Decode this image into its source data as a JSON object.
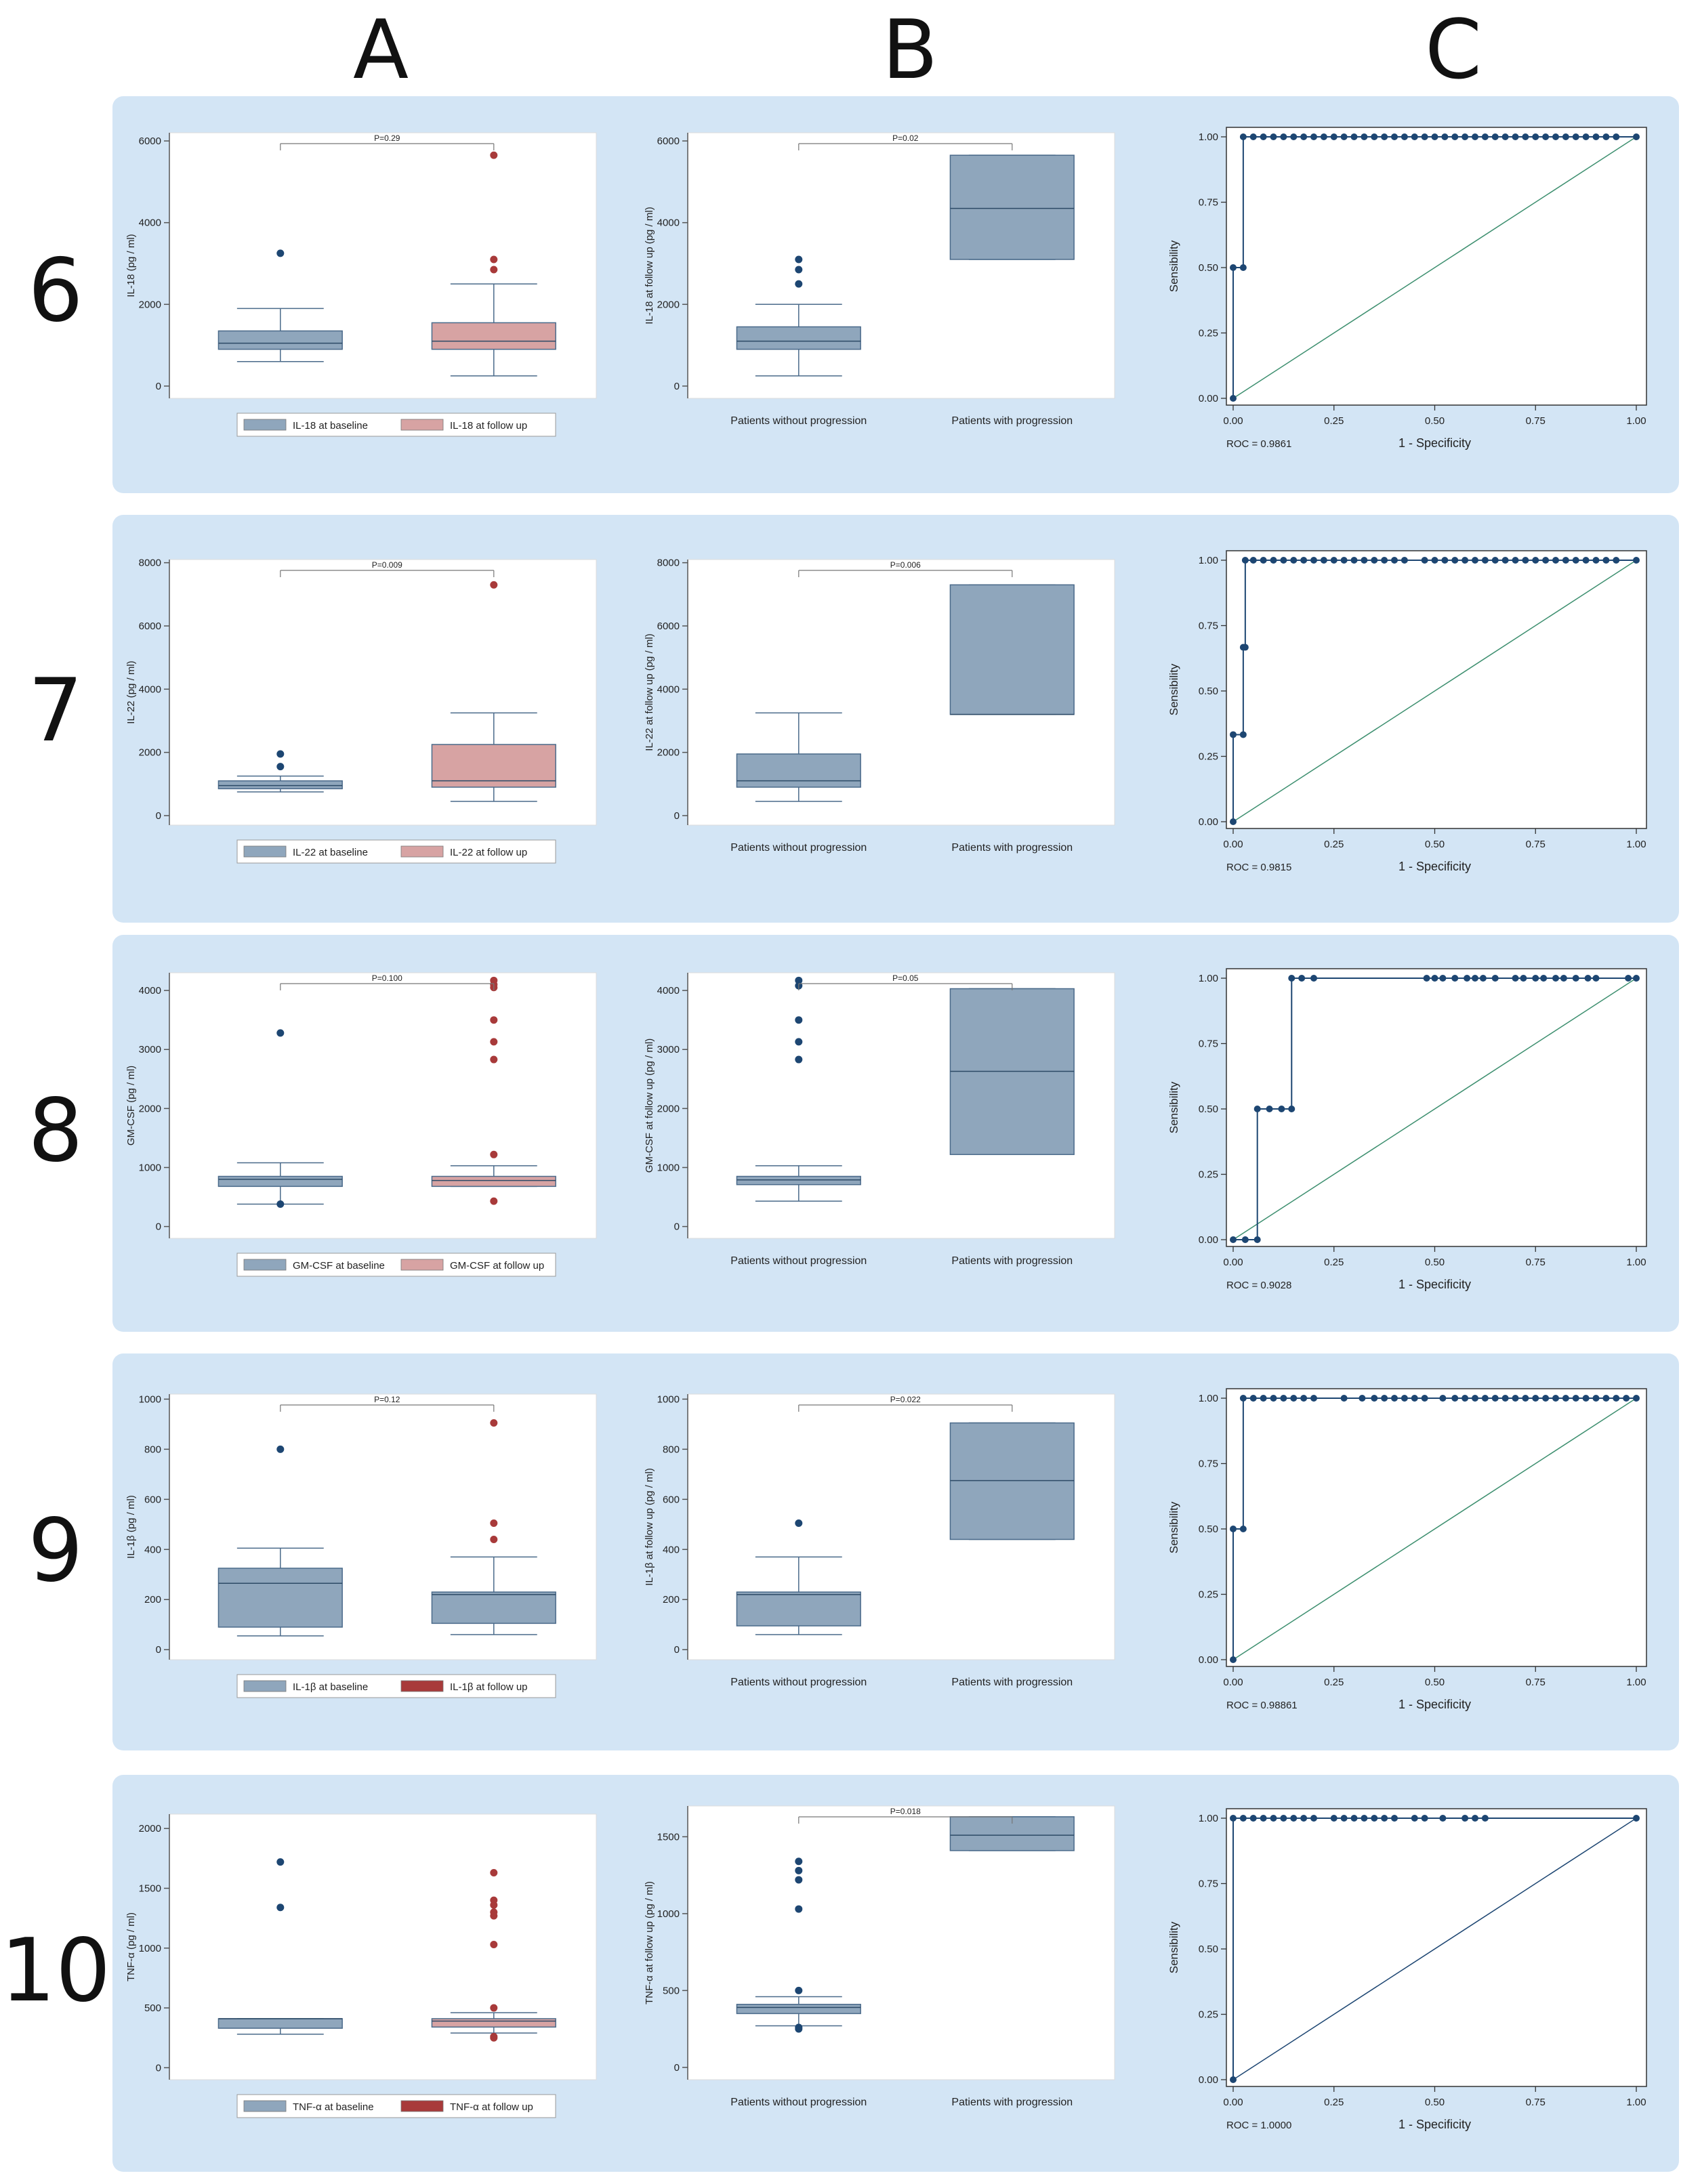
{
  "column_letters": [
    "A",
    "B",
    "C"
  ],
  "colors": {
    "baseline": "#8fa6bc",
    "follow_up_light": "#d7a3a3",
    "follow_up_dark": "#a83a3a",
    "outlier_blue": "#1d4672",
    "outlier_red": "#a83a3a",
    "roc_line": "#1d4672",
    "diagonal_green": "#3d8f6f",
    "panel_bg": "#d3e5f5"
  },
  "rows": [
    {
      "number": "6",
      "A": {
        "type": "box",
        "ylabel": "IL-18  (pg / ml)",
        "yticks": [
          0,
          2000,
          4000,
          6000
        ],
        "ylim": [
          -300,
          6200
        ],
        "pvalue": "P=0.29",
        "legend": [
          {
            "label": "IL-18 at baseline",
            "color": "#8fa6bc"
          },
          {
            "label": "IL-18 at follow up",
            "color": "#d7a3a3"
          }
        ],
        "boxes": [
          {
            "name": "IL-18 at baseline",
            "whislo": 600,
            "q1": 900,
            "med": 1050,
            "q3": 1350,
            "whishi": 1900,
            "outliers": [
              3250
            ],
            "color": "#8fa6bc",
            "out": "#1d4672"
          },
          {
            "name": "IL-18 at follow up",
            "whislo": 250,
            "q1": 900,
            "med": 1100,
            "q3": 1550,
            "whishi": 2500,
            "outliers": [
              2850,
              3100,
              5650
            ],
            "color": "#d7a3a3",
            "out": "#a83a3a"
          }
        ]
      },
      "B": {
        "type": "box",
        "ylabel": "IL-18 at follow up (pg / ml)",
        "yticks": [
          0,
          2000,
          4000,
          6000
        ],
        "ylim": [
          -300,
          6200
        ],
        "pvalue": "P=0.02",
        "categories": [
          "Patients without progression",
          "Patients with progression"
        ],
        "boxes": [
          {
            "name": "Patients without progression",
            "whislo": 250,
            "q1": 900,
            "med": 1100,
            "q3": 1450,
            "whishi": 2000,
            "outliers": [
              2500,
              2850,
              3100
            ],
            "color": "#8fa6bc",
            "out": "#1d4672"
          },
          {
            "name": "Patients with progression",
            "whislo": 3100,
            "q1": 3100,
            "med": 4350,
            "q3": 5650,
            "whishi": 5650,
            "outliers": [],
            "color": "#8fa6bc",
            "out": "#1d4672"
          }
        ]
      },
      "C": {
        "type": "roc",
        "ylabel": "Sensibility",
        "xlabel": "1 - Specificity",
        "roc_label": "ROC = 0.9861",
        "ticks": [
          "0.00",
          "0.25",
          "0.50",
          "0.75",
          "1.00"
        ],
        "x": [
          0,
          0,
          0.025,
          0.025,
          0.05,
          0.075,
          0.1,
          0.125,
          0.15,
          0.175,
          0.2,
          0.225,
          0.25,
          0.275,
          0.3,
          0.325,
          0.35,
          0.375,
          0.4,
          0.425,
          0.45,
          0.475,
          0.5,
          0.525,
          0.55,
          0.575,
          0.6,
          0.625,
          0.65,
          0.675,
          0.7,
          0.725,
          0.75,
          0.775,
          0.8,
          0.825,
          0.85,
          0.875,
          0.9,
          0.925,
          0.95,
          1.0
        ],
        "y": [
          0,
          0.5,
          0.5,
          1,
          1,
          1,
          1,
          1,
          1,
          1,
          1,
          1,
          1,
          1,
          1,
          1,
          1,
          1,
          1,
          1,
          1,
          1,
          1,
          1,
          1,
          1,
          1,
          1,
          1,
          1,
          1,
          1,
          1,
          1,
          1,
          1,
          1,
          1,
          1,
          1,
          1,
          1
        ],
        "diag_color": "#3d8f6f"
      }
    },
    {
      "number": "7",
      "A": {
        "type": "box",
        "ylabel": "IL-22  (pg / ml)",
        "yticks": [
          0,
          2000,
          4000,
          6000,
          8000
        ],
        "ylim": [
          -300,
          8100
        ],
        "pvalue": "P=0.009",
        "legend": [
          {
            "label": "IL-22 at baseline",
            "color": "#8fa6bc"
          },
          {
            "label": "IL-22 at follow up",
            "color": "#d7a3a3"
          }
        ],
        "boxes": [
          {
            "name": "IL-22 at baseline",
            "whislo": 750,
            "q1": 850,
            "med": 950,
            "q3": 1100,
            "whishi": 1250,
            "outliers": [
              1550,
              1950
            ],
            "color": "#8fa6bc",
            "out": "#1d4672"
          },
          {
            "name": "IL-22 at follow up",
            "whislo": 450,
            "q1": 900,
            "med": 1100,
            "q3": 2250,
            "whishi": 3250,
            "outliers": [
              7300
            ],
            "color": "#d7a3a3",
            "out": "#a83a3a"
          }
        ]
      },
      "B": {
        "type": "box",
        "ylabel": "IL-22 at follow up (pg / ml)",
        "yticks": [
          0,
          2000,
          4000,
          6000,
          8000
        ],
        "ylim": [
          -300,
          8100
        ],
        "pvalue": "P=0.006",
        "categories": [
          "Patients without progression",
          "Patients with progression"
        ],
        "boxes": [
          {
            "name": "Patients without progression",
            "whislo": 450,
            "q1": 900,
            "med": 1100,
            "q3": 1950,
            "whishi": 3250,
            "outliers": [],
            "color": "#8fa6bc",
            "out": "#1d4672"
          },
          {
            "name": "Patients with progression",
            "whislo": 3200,
            "q1": 3200,
            "med": 3200,
            "q3": 7300,
            "whishi": 7300,
            "outliers": [],
            "color": "#8fa6bc",
            "out": "#1d4672"
          }
        ]
      },
      "C": {
        "type": "roc",
        "ylabel": "Sensibility",
        "xlabel": "1 - Specificity",
        "roc_label": "ROC = 0.9815",
        "ticks": [
          "0.00",
          "0.25",
          "0.50",
          "0.75",
          "1.00"
        ],
        "x": [
          0,
          0,
          0.025,
          0.025,
          0.03,
          0.03,
          0.05,
          0.075,
          0.1,
          0.125,
          0.15,
          0.175,
          0.2,
          0.225,
          0.25,
          0.275,
          0.3,
          0.325,
          0.35,
          0.375,
          0.4,
          0.425,
          0.475,
          0.5,
          0.525,
          0.55,
          0.575,
          0.6,
          0.625,
          0.65,
          0.675,
          0.7,
          0.725,
          0.75,
          0.775,
          0.8,
          0.825,
          0.85,
          0.875,
          0.9,
          0.925,
          0.95,
          1.0
        ],
        "y": [
          0,
          0.333,
          0.333,
          0.667,
          0.667,
          1,
          1,
          1,
          1,
          1,
          1,
          1,
          1,
          1,
          1,
          1,
          1,
          1,
          1,
          1,
          1,
          1,
          1,
          1,
          1,
          1,
          1,
          1,
          1,
          1,
          1,
          1,
          1,
          1,
          1,
          1,
          1,
          1,
          1,
          1,
          1,
          1,
          1
        ],
        "diag_color": "#3d8f6f"
      }
    },
    {
      "number": "8",
      "A": {
        "type": "box",
        "ylabel": "GM-CSF  (pg / ml)",
        "yticks": [
          0,
          1000,
          2000,
          3000,
          4000
        ],
        "ylim": [
          -200,
          4300
        ],
        "pvalue": "P=0.100",
        "legend": [
          {
            "label": "GM-CSF at baseline",
            "color": "#8fa6bc"
          },
          {
            "label": "GM-CSF at follow up",
            "color": "#d7a3a3"
          }
        ],
        "boxes": [
          {
            "name": "GM-CSF at baseline",
            "whislo": 380,
            "q1": 680,
            "med": 800,
            "q3": 850,
            "whishi": 1080,
            "outliers": [
              380,
              3280
            ],
            "color": "#8fa6bc",
            "out": "#1d4672"
          },
          {
            "name": "GM-CSF at follow up",
            "whislo": 680,
            "q1": 680,
            "med": 780,
            "q3": 850,
            "whishi": 1030,
            "outliers": [
              430,
              1220,
              2830,
              3130,
              3500,
              4050,
              4100,
              4170
            ],
            "color": "#d7a3a3",
            "out": "#a83a3a"
          }
        ]
      },
      "B": {
        "type": "box",
        "ylabel": "GM-CSF at follow up (pg / ml)",
        "yticks": [
          0,
          1000,
          2000,
          3000,
          4000
        ],
        "ylim": [
          -200,
          4300
        ],
        "pvalue": "P=0.05",
        "categories": [
          "Patients without progression",
          "Patients with progression"
        ],
        "boxes": [
          {
            "name": "Patients without progression",
            "whislo": 430,
            "q1": 710,
            "med": 790,
            "q3": 850,
            "whishi": 1030,
            "outliers": [
              2830,
              3130,
              3500,
              4080,
              4170
            ],
            "color": "#8fa6bc",
            "out": "#1d4672"
          },
          {
            "name": "Patients with progression",
            "whislo": 1220,
            "q1": 1220,
            "med": 2630,
            "q3": 4030,
            "whishi": 4030,
            "outliers": [],
            "color": "#8fa6bc",
            "out": "#1d4672"
          }
        ]
      },
      "C": {
        "type": "roc",
        "ylabel": "Sensibility",
        "xlabel": "1 - Specificity",
        "roc_label": "ROC = 0.9028",
        "ticks": [
          "0.00",
          "0.25",
          "0.50",
          "0.75",
          "1.00"
        ],
        "x": [
          0,
          0.03,
          0.06,
          0.06,
          0.09,
          0.12,
          0.145,
          0.145,
          0.17,
          0.2,
          0.48,
          0.5,
          0.52,
          0.55,
          0.58,
          0.6,
          0.62,
          0.65,
          0.7,
          0.72,
          0.75,
          0.77,
          0.8,
          0.82,
          0.85,
          0.88,
          0.9,
          0.98,
          1.0
        ],
        "y": [
          0,
          0,
          0,
          0.5,
          0.5,
          0.5,
          0.5,
          1,
          1,
          1,
          1,
          1,
          1,
          1,
          1,
          1,
          1,
          1,
          1,
          1,
          1,
          1,
          1,
          1,
          1,
          1,
          1,
          1,
          1
        ],
        "diag_color": "#3d8f6f"
      }
    },
    {
      "number": "9",
      "A": {
        "type": "box",
        "ylabel": "IL-1β (pg / ml)",
        "yticks": [
          0,
          200,
          400,
          600,
          800,
          1000
        ],
        "ylim": [
          -40,
          1020
        ],
        "pvalue": "P=0.12",
        "legend": [
          {
            "label": "IL-1β at baseline",
            "color": "#8fa6bc"
          },
          {
            "label": "IL-1β at follow up",
            "color": "#a83a3a"
          }
        ],
        "boxes": [
          {
            "name": "IL-1β at baseline",
            "whislo": 55,
            "q1": 90,
            "med": 265,
            "q3": 325,
            "whishi": 405,
            "outliers": [
              800
            ],
            "color": "#8fa6bc",
            "out": "#1d4672"
          },
          {
            "name": "IL-1β at follow up",
            "whislo": 60,
            "q1": 105,
            "med": 220,
            "q3": 230,
            "whishi": 370,
            "outliers": [
              440,
              505,
              905
            ],
            "color": "#8fa6bc",
            "out": "#a83a3a"
          }
        ]
      },
      "B": {
        "type": "box",
        "ylabel": "IL-1β at follow up (pg / ml)",
        "yticks": [
          0,
          200,
          400,
          600,
          800,
          1000
        ],
        "ylim": [
          -40,
          1020
        ],
        "pvalue": "P=0.022",
        "categories": [
          "Patients without progression",
          "Patients with progression"
        ],
        "boxes": [
          {
            "name": "Patients without progression",
            "whislo": 60,
            "q1": 95,
            "med": 220,
            "q3": 230,
            "whishi": 370,
            "outliers": [
              505
            ],
            "color": "#8fa6bc",
            "out": "#1d4672"
          },
          {
            "name": "Patients with progression",
            "whislo": 440,
            "q1": 440,
            "med": 675,
            "q3": 905,
            "whishi": 905,
            "outliers": [],
            "color": "#8fa6bc",
            "out": "#1d4672"
          }
        ]
      },
      "C": {
        "type": "roc",
        "ylabel": "Sensibility",
        "xlabel": "1 - Specificity",
        "roc_label": "ROC = 0.98861",
        "ticks": [
          "0.00",
          "0.25",
          "0.50",
          "0.75",
          "1.00"
        ],
        "x": [
          0,
          0,
          0.025,
          0.025,
          0.05,
          0.075,
          0.1,
          0.125,
          0.15,
          0.175,
          0.2,
          0.275,
          0.32,
          0.35,
          0.375,
          0.4,
          0.425,
          0.45,
          0.475,
          0.52,
          0.55,
          0.575,
          0.6,
          0.625,
          0.65,
          0.675,
          0.7,
          0.725,
          0.75,
          0.775,
          0.8,
          0.825,
          0.85,
          0.875,
          0.9,
          0.925,
          0.95,
          0.975,
          1.0
        ],
        "y": [
          0,
          0.5,
          0.5,
          1,
          1,
          1,
          1,
          1,
          1,
          1,
          1,
          1,
          1,
          1,
          1,
          1,
          1,
          1,
          1,
          1,
          1,
          1,
          1,
          1,
          1,
          1,
          1,
          1,
          1,
          1,
          1,
          1,
          1,
          1,
          1,
          1,
          1,
          1,
          1
        ],
        "diag_color": "#3d8f6f"
      }
    },
    {
      "number": "10",
      "A": {
        "type": "box",
        "ylabel": "TNF-α (pg / ml)",
        "yticks": [
          0,
          500,
          1000,
          1500,
          2000
        ],
        "ylim": [
          -100,
          2120
        ],
        "pvalue": "",
        "legend": [
          {
            "label": "TNF-α at baseline",
            "color": "#8fa6bc"
          },
          {
            "label": "TNF-α at follow up",
            "color": "#a83a3a"
          }
        ],
        "boxes": [
          {
            "name": "TNF-α at baseline",
            "whislo": 280,
            "q1": 330,
            "med": 410,
            "q3": 410,
            "whishi": 410,
            "outliers": [
              1340,
              1720
            ],
            "color": "#8fa6bc",
            "out": "#1d4672"
          },
          {
            "name": "TNF-α at follow up",
            "whislo": 290,
            "q1": 340,
            "med": 390,
            "q3": 410,
            "whishi": 460,
            "outliers": [
              250,
              260,
              500,
              1030,
              1270,
              1300,
              1360,
              1400,
              1630
            ],
            "color": "#d7a3a3",
            "out": "#a83a3a"
          }
        ]
      },
      "B": {
        "type": "box",
        "ylabel": "TNF-α at follow up (pg / ml)",
        "yticks": [
          0,
          500,
          1000,
          1500
        ],
        "ylim": [
          -80,
          1700
        ],
        "pvalue": "P=0.018",
        "categories": [
          "Patients without progression",
          "Patients with progression"
        ],
        "boxes": [
          {
            "name": "Patients without progression",
            "whislo": 270,
            "q1": 350,
            "med": 390,
            "q3": 410,
            "whishi": 460,
            "outliers": [
              250,
              260,
              500,
              1030,
              1220,
              1280,
              1340
            ],
            "color": "#8fa6bc",
            "out": "#1d4672"
          },
          {
            "name": "Patients with progression",
            "whislo": 1410,
            "q1": 1410,
            "med": 1510,
            "q3": 1630,
            "whishi": 1630,
            "outliers": [],
            "color": "#8fa6bc",
            "out": "#1d4672"
          }
        ]
      },
      "C": {
        "type": "roc",
        "ylabel": "Sensibility",
        "xlabel": "1 - Specificity",
        "roc_label": "ROC = 1.0000",
        "ticks": [
          "0.00",
          "0.25",
          "0.50",
          "0.75",
          "1.00"
        ],
        "x": [
          0,
          0,
          0.025,
          0.05,
          0.075,
          0.1,
          0.125,
          0.15,
          0.175,
          0.2,
          0.25,
          0.275,
          0.3,
          0.325,
          0.35,
          0.375,
          0.4,
          0.45,
          0.475,
          0.52,
          0.575,
          0.6,
          0.625,
          1.0
        ],
        "y": [
          0,
          1,
          1,
          1,
          1,
          1,
          1,
          1,
          1,
          1,
          1,
          1,
          1,
          1,
          1,
          1,
          1,
          1,
          1,
          1,
          1,
          1,
          1,
          1
        ],
        "diag_color": "#1d4672"
      }
    }
  ]
}
